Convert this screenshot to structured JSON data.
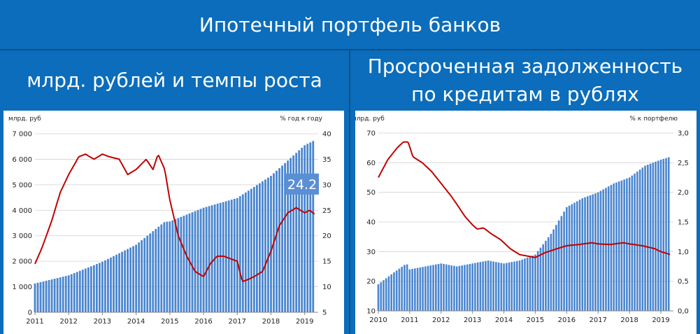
{
  "header": {
    "title": "Ипотечный портфель банков",
    "left_subtitle": "млрд. рублей и темпы роста",
    "right_subtitle_line1": "Просроченная задолженность",
    "right_subtitle_line2": "по кредитам в рублях"
  },
  "colors": {
    "background": "#0b6dbb",
    "bars": "#4a86cf",
    "line": "#c00000",
    "callout_bg": "#5b8fd4"
  },
  "chart_data": [
    {
      "type": "bar",
      "bar_left_axis": true,
      "ylabel_left": "млрд. руб",
      "ylabel_right": "% год к году",
      "ylim_left": [
        0,
        7000
      ],
      "ylim_right": [
        5,
        40
      ],
      "yticks_left": [
        "0",
        "1 000",
        "2 000",
        "3 000",
        "4 000",
        "5 000",
        "6 000",
        "7 000"
      ],
      "yticks_right": [
        "5",
        "10",
        "15",
        "20",
        "25",
        "30",
        "35",
        "40"
      ],
      "xticks": [
        "2011",
        "2012",
        "2013",
        "2014",
        "2015",
        "2016",
        "2017",
        "2018",
        "2019"
      ],
      "x_range": [
        2011,
        2019.4
      ],
      "callout": "24.2",
      "series": [
        {
          "type": "bar",
          "axis": "left",
          "x": [
            2011.0,
            2012.0,
            2013.0,
            2014.0,
            2014.85,
            2015.0,
            2016.0,
            2017.0,
            2018.0,
            2019.0,
            2019.3
          ],
          "values": [
            1130,
            1450,
            1980,
            2650,
            3550,
            3560,
            4100,
            4480,
            5350,
            6550,
            6750
          ]
        },
        {
          "type": "line",
          "axis": "right",
          "x": [
            2011.0,
            2011.2,
            2011.5,
            2011.75,
            2012.0,
            2012.3,
            2012.5,
            2012.75,
            2013.0,
            2013.2,
            2013.5,
            2013.75,
            2014.0,
            2014.3,
            2014.5,
            2014.65,
            2014.85,
            2015.0,
            2015.25,
            2015.5,
            2015.75,
            2016.0,
            2016.2,
            2016.4,
            2016.6,
            2016.8,
            2017.0,
            2017.15,
            2017.35,
            2017.5,
            2017.75,
            2018.0,
            2018.25,
            2018.5,
            2018.75,
            2019.0,
            2019.15,
            2019.3
          ],
          "values": [
            14.5,
            17.5,
            23,
            28.5,
            32,
            35.5,
            36,
            35,
            36,
            35.5,
            35,
            32,
            33,
            35,
            33,
            36,
            33,
            27,
            20,
            16,
            13,
            12,
            14.5,
            16,
            16,
            15.5,
            15,
            11,
            11.5,
            12,
            13,
            17,
            22,
            24.5,
            25.5,
            24.5,
            25,
            24.2
          ]
        }
      ]
    },
    {
      "type": "bar",
      "ylabel_left": "млрд. руб",
      "ylabel_right": "% к портфелю",
      "ylim_left": [
        10,
        70
      ],
      "ylim_right": [
        0,
        3
      ],
      "yticks_left": [
        "10",
        "20",
        "30",
        "40",
        "50",
        "60",
        "70"
      ],
      "yticks_right": [
        "0,0",
        "0,5",
        "1,0",
        "1,5",
        "2,0",
        "2,5",
        "3,0"
      ],
      "xticks": [
        "2010",
        "2011",
        "2012",
        "2013",
        "2014",
        "2015",
        "2016",
        "2017",
        "2018",
        "2019"
      ],
      "x_range": [
        2010,
        2019.4
      ],
      "series": [
        {
          "type": "bar",
          "axis": "left",
          "x": [
            2010.0,
            2010.5,
            2010.9,
            2011.0,
            2011.5,
            2012.0,
            2012.5,
            2013.0,
            2013.5,
            2014.0,
            2014.5,
            2015.0,
            2015.5,
            2016.0,
            2016.5,
            2017.0,
            2017.5,
            2018.0,
            2018.5,
            2019.0,
            2019.3
          ],
          "values": [
            19,
            23,
            26,
            24,
            25,
            26,
            25,
            26,
            27,
            26,
            27,
            29,
            36,
            45,
            48,
            50,
            53,
            55,
            59,
            61,
            62
          ]
        },
        {
          "type": "line",
          "axis": "right",
          "x": [
            2010.0,
            2010.3,
            2010.6,
            2010.8,
            2010.95,
            2011.1,
            2011.4,
            2011.7,
            2012.0,
            2012.3,
            2012.5,
            2012.75,
            2013.0,
            2013.15,
            2013.35,
            2013.6,
            2013.9,
            2014.2,
            2014.5,
            2014.8,
            2015.0,
            2015.3,
            2015.7,
            2016.0,
            2016.4,
            2016.8,
            2017.0,
            2017.4,
            2017.8,
            2018.0,
            2018.4,
            2018.8,
            2019.0,
            2019.3
          ],
          "values": [
            2.25,
            2.55,
            2.75,
            2.85,
            2.85,
            2.6,
            2.5,
            2.35,
            2.15,
            1.95,
            1.8,
            1.6,
            1.45,
            1.38,
            1.4,
            1.3,
            1.2,
            1.05,
            0.95,
            0.92,
            0.9,
            0.98,
            1.05,
            1.1,
            1.12,
            1.15,
            1.13,
            1.12,
            1.15,
            1.13,
            1.1,
            1.05,
            1.0,
            0.95
          ]
        }
      ]
    }
  ]
}
